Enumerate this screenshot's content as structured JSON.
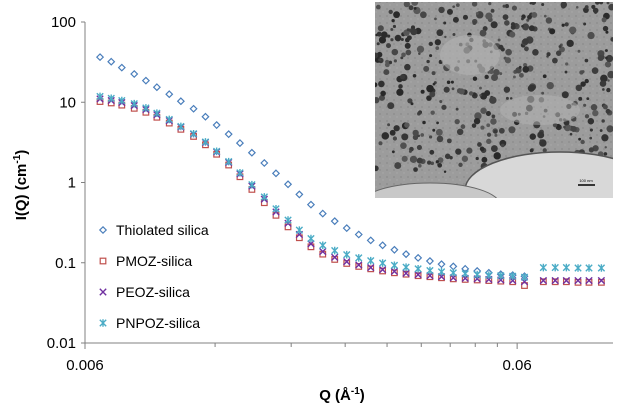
{
  "chart_data": {
    "type": "scatter",
    "xlabel_main": "Q (Å",
    "xlabel_sup": "-1",
    "xlabel_end": ")",
    "ylabel_main": "I(Q) (cm",
    "ylabel_sup": "-1",
    "ylabel_end": ")",
    "x_scale": "log",
    "y_scale": "log",
    "xlim": [
      0.006,
      0.1
    ],
    "ylim": [
      0.01,
      100
    ],
    "x_ticks": [
      0.006,
      0.06
    ],
    "x_tick_labels": [
      "0.006",
      "0.06"
    ],
    "y_ticks": [
      0.01,
      0.1,
      1,
      10,
      100
    ],
    "y_tick_labels": [
      "0.01",
      "0.1",
      "1",
      "10",
      "100"
    ],
    "legend_position": "lower-left",
    "inset": {
      "kind": "TEM micrograph",
      "position": "top-right",
      "scale_bar_text": "100 nm"
    },
    "series": [
      {
        "name": "Thiolated silica",
        "marker": "diamond",
        "color": "#4a7ebb",
        "points": [
          [
            0.0065,
            36.5
          ],
          [
            0.0069,
            32
          ],
          [
            0.0073,
            27
          ],
          [
            0.0078,
            22.5
          ],
          [
            0.0083,
            18.6
          ],
          [
            0.0088,
            15.4
          ],
          [
            0.0094,
            12.6
          ],
          [
            0.01,
            10.3
          ],
          [
            0.0107,
            8.3
          ],
          [
            0.0114,
            6.6
          ],
          [
            0.0121,
            5.2
          ],
          [
            0.0129,
            4.0
          ],
          [
            0.0137,
            3.1
          ],
          [
            0.0146,
            2.35
          ],
          [
            0.0156,
            1.75
          ],
          [
            0.0166,
            1.3
          ],
          [
            0.0177,
            0.95
          ],
          [
            0.0188,
            0.71
          ],
          [
            0.02,
            0.53
          ],
          [
            0.0213,
            0.41
          ],
          [
            0.0227,
            0.33
          ],
          [
            0.0242,
            0.27
          ],
          [
            0.0258,
            0.225
          ],
          [
            0.0275,
            0.19
          ],
          [
            0.0293,
            0.165
          ],
          [
            0.0312,
            0.145
          ],
          [
            0.0332,
            0.128
          ],
          [
            0.0354,
            0.115
          ],
          [
            0.0377,
            0.105
          ],
          [
            0.0401,
            0.096
          ],
          [
            0.0427,
            0.09
          ],
          [
            0.0455,
            0.084
          ],
          [
            0.0485,
            0.079
          ],
          [
            0.0516,
            0.075
          ],
          [
            0.055,
            0.072
          ],
          [
            0.0586,
            0.07
          ],
          [
            0.0624,
            0.068
          ]
        ]
      },
      {
        "name": "PMOZ-silica",
        "marker": "square",
        "color": "#c0504d",
        "points": [
          [
            0.0065,
            10.2
          ],
          [
            0.0069,
            9.8
          ],
          [
            0.0073,
            9.2
          ],
          [
            0.0078,
            8.4
          ],
          [
            0.0083,
            7.5
          ],
          [
            0.0088,
            6.5
          ],
          [
            0.0094,
            5.5
          ],
          [
            0.01,
            4.6
          ],
          [
            0.0107,
            3.75
          ],
          [
            0.0114,
            2.95
          ],
          [
            0.0121,
            2.25
          ],
          [
            0.0129,
            1.65
          ],
          [
            0.0137,
            1.18
          ],
          [
            0.0146,
            0.82
          ],
          [
            0.0156,
            0.56
          ],
          [
            0.0166,
            0.39
          ],
          [
            0.0177,
            0.28
          ],
          [
            0.0188,
            0.205
          ],
          [
            0.02,
            0.158
          ],
          [
            0.0213,
            0.128
          ],
          [
            0.0227,
            0.11
          ],
          [
            0.0242,
            0.098
          ],
          [
            0.0258,
            0.09
          ],
          [
            0.0275,
            0.084
          ],
          [
            0.0293,
            0.079
          ],
          [
            0.0312,
            0.075
          ],
          [
            0.0332,
            0.072
          ],
          [
            0.0354,
            0.069
          ],
          [
            0.0377,
            0.067
          ],
          [
            0.0401,
            0.065
          ],
          [
            0.0427,
            0.063
          ],
          [
            0.0455,
            0.062
          ],
          [
            0.0485,
            0.061
          ],
          [
            0.0516,
            0.06
          ],
          [
            0.055,
            0.059
          ],
          [
            0.0586,
            0.058
          ],
          [
            0.0624,
            0.052
          ],
          [
            0.069,
            0.058
          ],
          [
            0.0735,
            0.058
          ],
          [
            0.078,
            0.058
          ],
          [
            0.083,
            0.057
          ],
          [
            0.088,
            0.057
          ],
          [
            0.094,
            0.057
          ]
        ]
      },
      {
        "name": "PEOZ-silica",
        "marker": "x",
        "color": "#7030a0",
        "points": [
          [
            0.0065,
            11
          ],
          [
            0.0069,
            10.5
          ],
          [
            0.0073,
            9.9
          ],
          [
            0.0078,
            9.1
          ],
          [
            0.0083,
            8.1
          ],
          [
            0.0088,
            7.0
          ],
          [
            0.0094,
            5.9
          ],
          [
            0.01,
            4.9
          ],
          [
            0.0107,
            4.0
          ],
          [
            0.0114,
            3.15
          ],
          [
            0.0121,
            2.4
          ],
          [
            0.0129,
            1.78
          ],
          [
            0.0137,
            1.28
          ],
          [
            0.0146,
            0.9
          ],
          [
            0.0156,
            0.62
          ],
          [
            0.0166,
            0.43
          ],
          [
            0.0177,
            0.31
          ],
          [
            0.0188,
            0.225
          ],
          [
            0.02,
            0.172
          ],
          [
            0.0213,
            0.138
          ],
          [
            0.0227,
            0.117
          ],
          [
            0.0242,
            0.103
          ],
          [
            0.0258,
            0.094
          ],
          [
            0.0275,
            0.087
          ],
          [
            0.0293,
            0.082
          ],
          [
            0.0312,
            0.078
          ],
          [
            0.0332,
            0.074
          ],
          [
            0.0354,
            0.071
          ],
          [
            0.0377,
            0.069
          ],
          [
            0.0401,
            0.067
          ],
          [
            0.0427,
            0.065
          ],
          [
            0.0455,
            0.064
          ],
          [
            0.0485,
            0.063
          ],
          [
            0.0516,
            0.062
          ],
          [
            0.055,
            0.061
          ],
          [
            0.0586,
            0.06
          ],
          [
            0.0624,
            0.058
          ],
          [
            0.069,
            0.06
          ],
          [
            0.0735,
            0.06
          ],
          [
            0.078,
            0.06
          ],
          [
            0.083,
            0.06
          ],
          [
            0.088,
            0.06
          ],
          [
            0.094,
            0.06
          ]
        ]
      },
      {
        "name": "PNPOZ-silica",
        "marker": "star",
        "color": "#4bacc6",
        "points": [
          [
            0.0065,
            11.8
          ],
          [
            0.0069,
            11.2
          ],
          [
            0.0073,
            10.5
          ],
          [
            0.0078,
            9.6
          ],
          [
            0.0083,
            8.5
          ],
          [
            0.0088,
            7.3
          ],
          [
            0.0094,
            6.1
          ],
          [
            0.01,
            5.0
          ],
          [
            0.0107,
            4.05
          ],
          [
            0.0114,
            3.2
          ],
          [
            0.0121,
            2.45
          ],
          [
            0.0129,
            1.82
          ],
          [
            0.0137,
            1.32
          ],
          [
            0.0146,
            0.94
          ],
          [
            0.0156,
            0.66
          ],
          [
            0.0166,
            0.47
          ],
          [
            0.0177,
            0.34
          ],
          [
            0.0188,
            0.255
          ],
          [
            0.02,
            0.2
          ],
          [
            0.0213,
            0.165
          ],
          [
            0.0227,
            0.142
          ],
          [
            0.0242,
            0.126
          ],
          [
            0.0258,
            0.115
          ],
          [
            0.0275,
            0.106
          ],
          [
            0.0293,
            0.099
          ],
          [
            0.0312,
            0.093
          ],
          [
            0.0332,
            0.088
          ],
          [
            0.0354,
            0.084
          ],
          [
            0.0377,
            0.08
          ],
          [
            0.0401,
            0.077
          ],
          [
            0.0427,
            0.075
          ],
          [
            0.0455,
            0.073
          ],
          [
            0.0485,
            0.071
          ],
          [
            0.0516,
            0.07
          ],
          [
            0.055,
            0.069
          ],
          [
            0.0586,
            0.068
          ],
          [
            0.0624,
            0.066
          ],
          [
            0.069,
            0.087
          ],
          [
            0.0735,
            0.087
          ],
          [
            0.078,
            0.087
          ],
          [
            0.083,
            0.086
          ],
          [
            0.088,
            0.086
          ],
          [
            0.094,
            0.086
          ]
        ]
      }
    ]
  }
}
